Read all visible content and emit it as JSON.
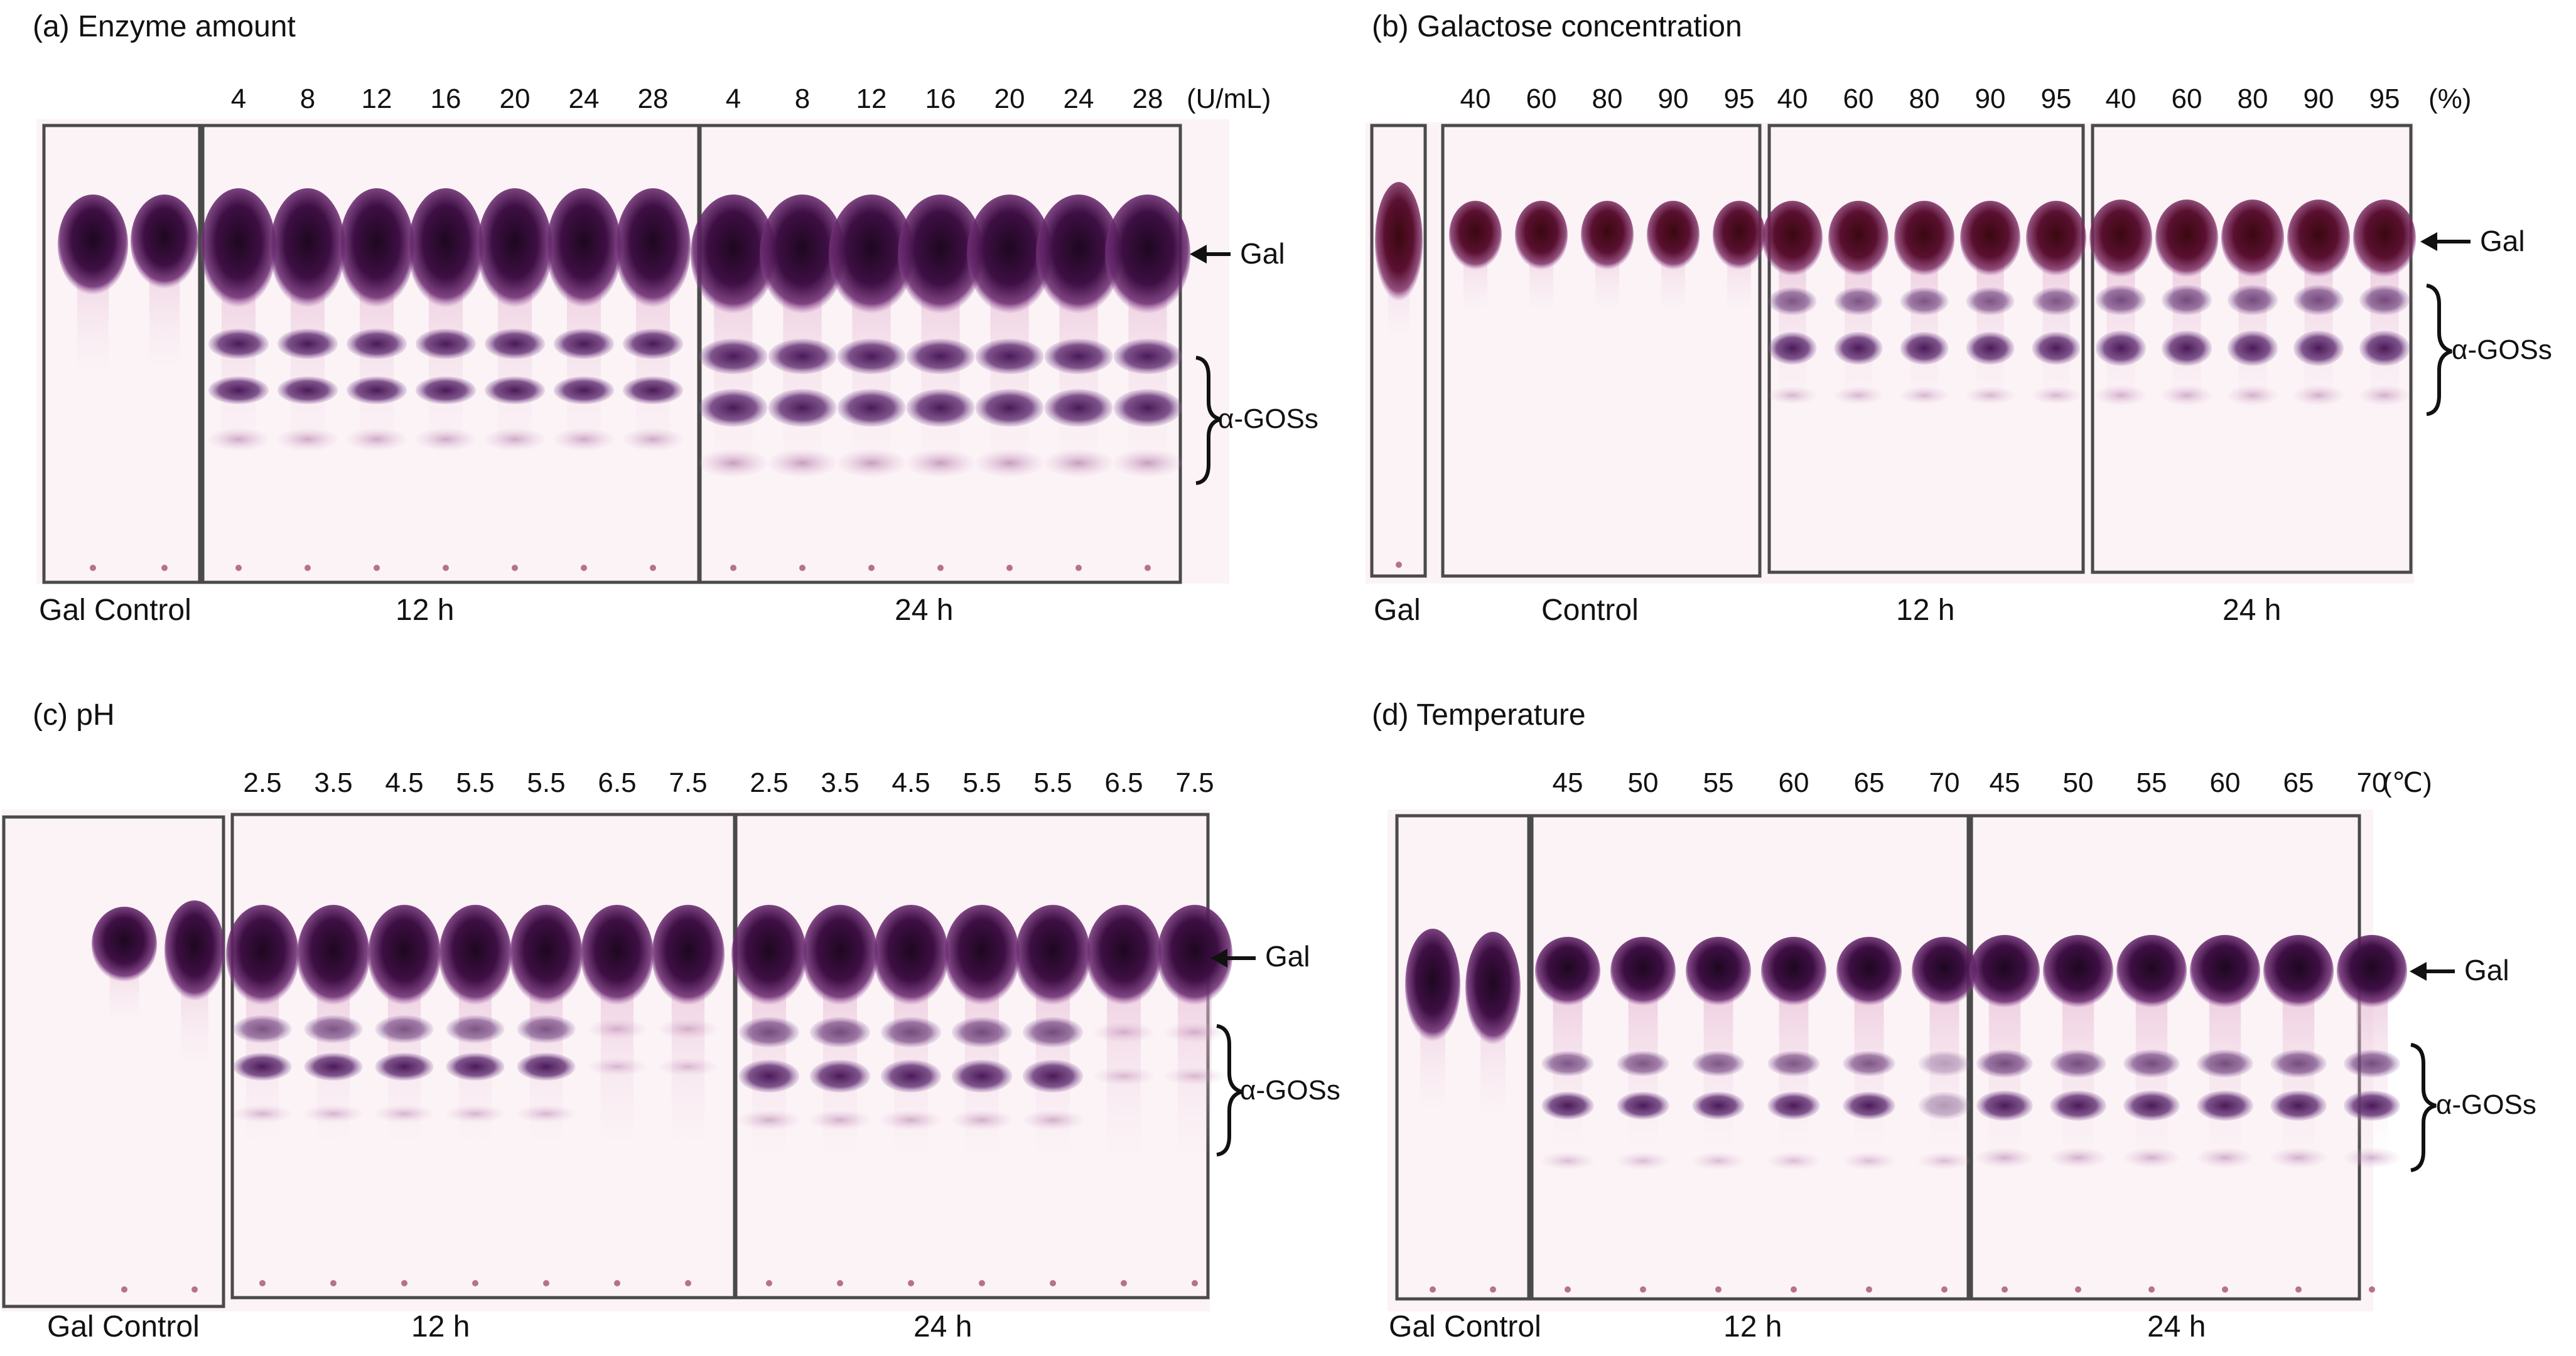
{
  "panels": {
    "a": {
      "title": "(a) Enzyme amount",
      "col_labels": [
        "4",
        "8",
        "12",
        "16",
        "20",
        "24",
        "28",
        "4",
        "8",
        "12",
        "16",
        "20",
        "24",
        "28"
      ],
      "unit": "(U/mL)",
      "group_labels": [
        "Gal Control",
        "12 h",
        "24 h"
      ],
      "gal_label": "Gal",
      "gos_label": "α-GOSs"
    },
    "b": {
      "title": "(b) Galactose concentration",
      "col_labels": [
        "40",
        "60",
        "80",
        "90",
        "95",
        "40",
        "60",
        "80",
        "90",
        "95",
        "40",
        "60",
        "80",
        "90",
        "95"
      ],
      "unit": "(%)",
      "group_labels": [
        "Gal",
        "Control",
        "12 h",
        "24 h"
      ],
      "gal_label": "Gal",
      "gos_label": "α-GOSs"
    },
    "c": {
      "title": "(c) pH",
      "col_labels": [
        "2.5",
        "3.5",
        "4.5",
        "5.5",
        "5.5",
        "6.5",
        "7.5",
        "2.5",
        "3.5",
        "4.5",
        "5.5",
        "5.5",
        "6.5",
        "7.5"
      ],
      "group_labels": [
        "Gal Control",
        "12 h",
        "24 h"
      ],
      "gal_label": "Gal",
      "gos_label": "α-GOSs"
    },
    "d": {
      "title": "(d) Temperature",
      "col_labels": [
        "45",
        "50",
        "55",
        "60",
        "65",
        "70",
        "45",
        "50",
        "55",
        "60",
        "65",
        "70"
      ],
      "unit": "(℃)",
      "group_labels": [
        "Gal Control",
        "12 h",
        "24 h"
      ],
      "gal_label": "Gal",
      "gos_label": "α-GOSs"
    }
  },
  "colors": {
    "plate": "#fbf3f6",
    "frame": "#4a4a4a",
    "spot_dark": "#2a0a2e",
    "spot_mid": "#5a1a5e",
    "spot_light": "#8a4d90",
    "smear": "#e8bfd8",
    "text": "#111111"
  },
  "chart_data": {
    "type": "table",
    "description_free": true,
    "panels": [
      {
        "panel": "a",
        "lanes_control": 2,
        "lanes_12h": 7,
        "lanes_24h": 7,
        "bands": [
          "Gal",
          "α-GOSs"
        ]
      },
      {
        "panel": "b",
        "lanes_control": 1,
        "lanes_group": 5,
        "groups": [
          "Control",
          "12 h",
          "24 h"
        ],
        "bands": [
          "Gal",
          "α-GOSs"
        ]
      },
      {
        "panel": "c",
        "lanes_control": 2,
        "lanes_12h": 7,
        "lanes_24h": 7,
        "bands": [
          "Gal",
          "α-GOSs"
        ]
      },
      {
        "panel": "d",
        "lanes_control": 2,
        "lanes_12h": 6,
        "lanes_24h": 6,
        "bands": [
          "Gal",
          "α-GOSs"
        ]
      }
    ]
  }
}
